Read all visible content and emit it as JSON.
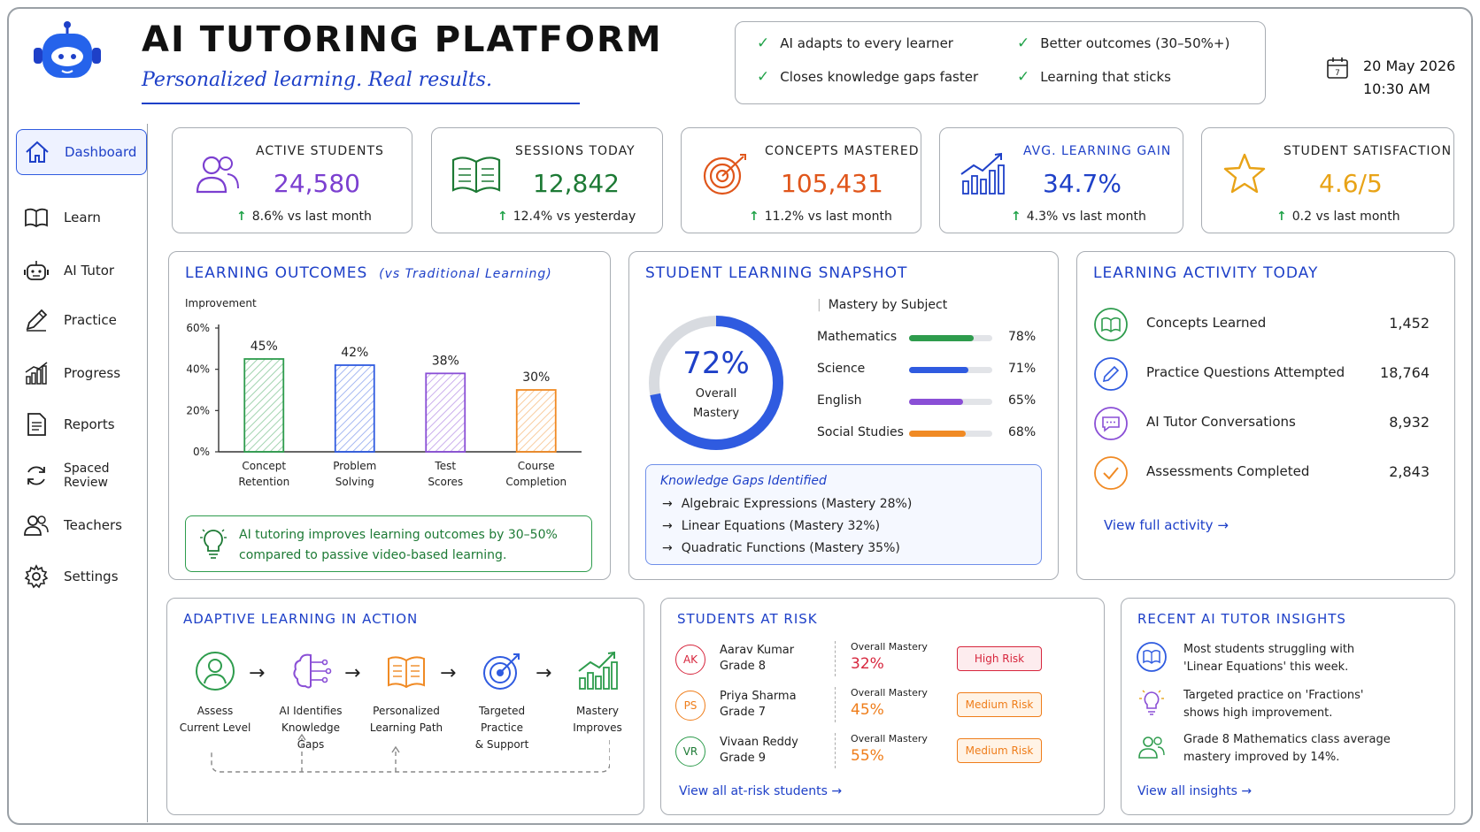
{
  "header": {
    "title": "AI TUTORING PLATFORM",
    "subtitle": "Personalized learning. Real results.",
    "benefits": [
      "AI adapts to every learner",
      "Better outcomes (30–50%+)",
      "Closes knowledge gaps faster",
      "Learning that sticks"
    ],
    "date": "20 May 2026",
    "time": "10:30 AM"
  },
  "sidebar": {
    "items": [
      {
        "label": "Dashboard",
        "icon": "home-icon",
        "active": true
      },
      {
        "label": "Learn",
        "icon": "book-icon"
      },
      {
        "label": "AI Tutor",
        "icon": "robot-icon"
      },
      {
        "label": "Practice",
        "icon": "pencil-icon"
      },
      {
        "label": "Progress",
        "icon": "chart-icon"
      },
      {
        "label": "Reports",
        "icon": "document-icon"
      },
      {
        "label": "Spaced Review",
        "icon": "refresh-icon"
      },
      {
        "label": "Teachers",
        "icon": "users-icon"
      },
      {
        "label": "Settings",
        "icon": "gear-icon"
      }
    ]
  },
  "kpis": [
    {
      "label": "ACTIVE STUDENTS",
      "value": "24,580",
      "delta": "8.6% vs last month",
      "color": "#7b3fd0"
    },
    {
      "label": "SESSIONS TODAY",
      "value": "12,842",
      "delta": "12.4% vs yesterday",
      "color": "#1d7a35"
    },
    {
      "label": "CONCEPTS MASTERED",
      "value": "105,431",
      "delta": "11.2% vs last month",
      "color": "#e0561b"
    },
    {
      "label": "AVG. LEARNING GAIN",
      "value": "34.7%",
      "delta": "4.3% vs last month",
      "color": "#1e40c8"
    },
    {
      "label": "STUDENT SATISFACTION",
      "value": "4.6/5",
      "delta": "0.2 vs last month",
      "color": "#e8a317"
    }
  ],
  "outcomes": {
    "title": "LEARNING OUTCOMES",
    "title_sub": "(vs Traditional Learning)",
    "insight": [
      "AI tutoring improves learning outcomes by 30–50%",
      "compared to passive video-based learning."
    ]
  },
  "chart_data": {
    "type": "bar",
    "ylabel": "Improvement",
    "categories": [
      "Concept Retention",
      "Problem Solving",
      "Test Scores",
      "Course Completion"
    ],
    "category_lines": [
      [
        "Concept",
        "Retention"
      ],
      [
        "Problem",
        "Solving"
      ],
      [
        "Test",
        "Scores"
      ],
      [
        "Course",
        "Completion"
      ]
    ],
    "values": [
      45,
      42,
      38,
      30
    ],
    "value_labels": [
      "45%",
      "42%",
      "38%",
      "30%"
    ],
    "colors": [
      "#2e9c4d",
      "#2f5be0",
      "#8a4fd6",
      "#f08a24"
    ],
    "ylim": [
      0,
      60
    ],
    "yticks": [
      "0%",
      "20%",
      "40%",
      "60%"
    ],
    "grid": false
  },
  "snapshot": {
    "title": "STUDENT LEARNING SNAPSHOT",
    "overall_value": "72%",
    "overall_fraction": 0.72,
    "overall_label": [
      "Overall",
      "Mastery"
    ],
    "mastery_header": "Mastery by Subject",
    "subjects": [
      {
        "name": "Mathematics",
        "pct": "78%",
        "value": 78,
        "color": "#2e9c4d"
      },
      {
        "name": "Science",
        "pct": "71%",
        "value": 71,
        "color": "#2f5be0"
      },
      {
        "name": "English",
        "pct": "65%",
        "value": 65,
        "color": "#8a4fd6"
      },
      {
        "name": "Social Studies",
        "pct": "68%",
        "value": 68,
        "color": "#f08a24"
      }
    ],
    "gaps_title": "Knowledge Gaps Identified",
    "gaps": [
      "Algebraic Expressions (Mastery 28%)",
      "Linear Equations (Mastery 32%)",
      "Quadratic Functions (Mastery 35%)"
    ]
  },
  "activity": {
    "title": "LEARNING ACTIVITY TODAY",
    "items": [
      {
        "label": "Concepts Learned",
        "value": "1,452",
        "color": "#2e9c4d"
      },
      {
        "label": "Practice Questions Attempted",
        "value": "18,764",
        "color": "#2f5be0"
      },
      {
        "label": "AI Tutor Conversations",
        "value": "8,932",
        "color": "#8a4fd6"
      },
      {
        "label": "Assessments Completed",
        "value": "2,843",
        "color": "#f08a24"
      }
    ],
    "link": "View full activity →"
  },
  "adaptive": {
    "title": "ADAPTIVE LEARNING IN ACTION",
    "steps": [
      {
        "lines": [
          "Assess",
          "Current Level"
        ]
      },
      {
        "lines": [
          "AI Identifies",
          "Knowledge Gaps"
        ]
      },
      {
        "lines": [
          "Personalized",
          "Learning Path"
        ]
      },
      {
        "lines": [
          "Targeted Practice",
          "& Support"
        ]
      },
      {
        "lines": [
          "Mastery",
          "Improves"
        ]
      }
    ]
  },
  "risk": {
    "title": "STUDENTS AT RISK",
    "mastery_label": "Overall Mastery",
    "students": [
      {
        "initials": "AK",
        "name": "Aarav Kumar",
        "grade": "Grade 8",
        "mastery": "32%",
        "risk": "High Risk",
        "color": "#d7263d"
      },
      {
        "initials": "PS",
        "name": "Priya Sharma",
        "grade": "Grade 7",
        "mastery": "45%",
        "risk": "Medium Risk",
        "color": "#ef7d1a"
      },
      {
        "initials": "VR",
        "name": "Vivaan Reddy",
        "grade": "Grade 9",
        "mastery": "55%",
        "risk": "Medium Risk",
        "color": "#ef7d1a"
      }
    ],
    "link": "View all at-risk students →"
  },
  "insights": {
    "title": "RECENT AI TUTOR INSIGHTS",
    "items": [
      {
        "lines": [
          "Most students struggling with",
          "'Linear Equations' this week."
        ],
        "icon": "book-icon",
        "color": "#2f5be0"
      },
      {
        "lines": [
          "Targeted practice on 'Fractions'",
          "shows high improvement."
        ],
        "icon": "lightbulb-icon",
        "color": "#8a4fd6"
      },
      {
        "lines": [
          "Grade 8 Mathematics class average",
          "mastery improved by 14%."
        ],
        "icon": "users-icon",
        "color": "#2e9c4d"
      }
    ],
    "link": "View all insights →"
  }
}
